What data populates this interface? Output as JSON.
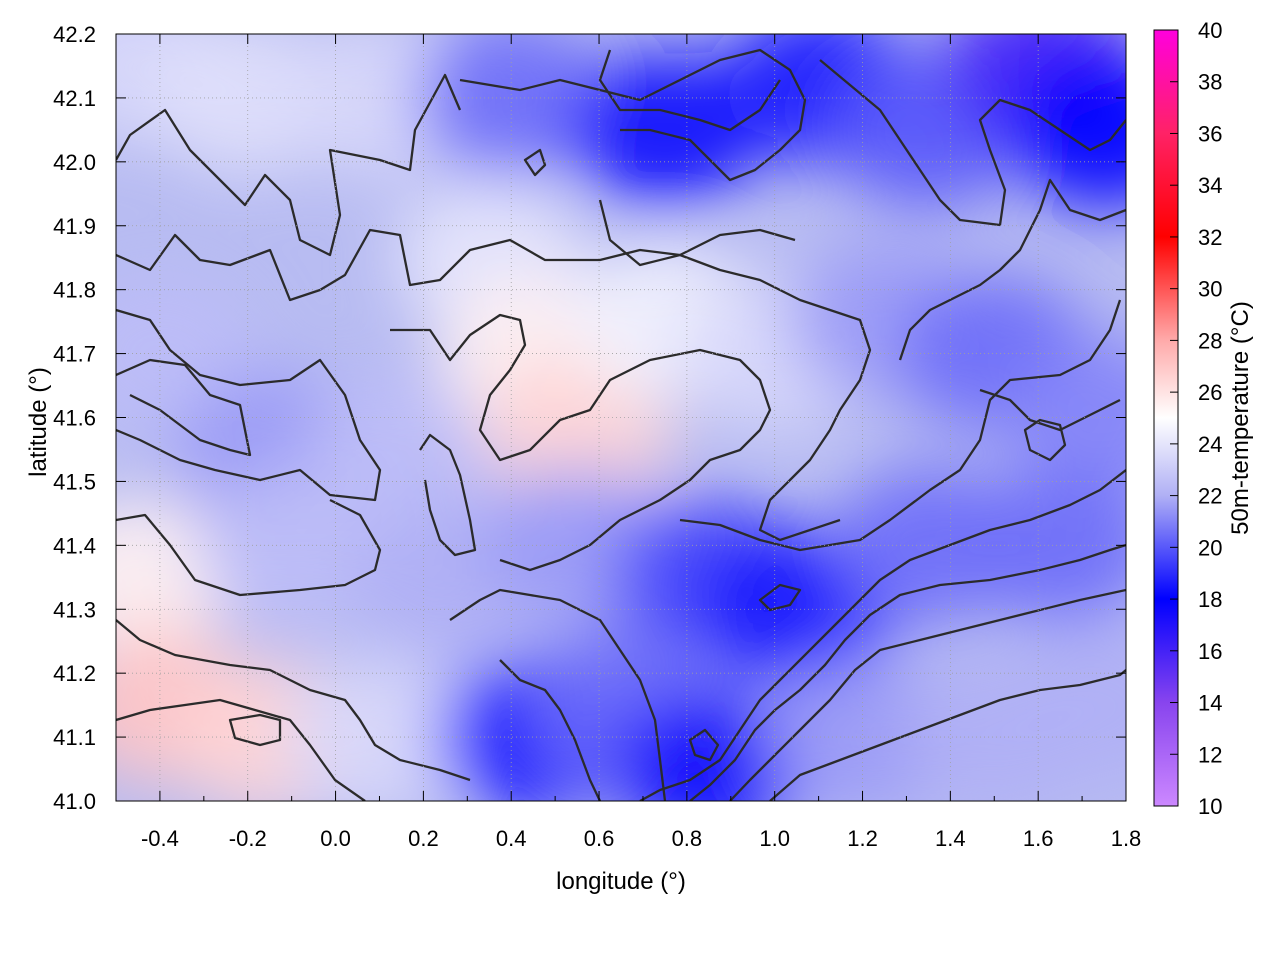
{
  "chart_data": {
    "type": "heatmap",
    "title": "",
    "xlabel": "longitude (°)",
    "ylabel": "latitude (°)",
    "colorbar_label": "50m-temperature (°C)",
    "xlim": [
      -0.5,
      1.8
    ],
    "ylim": [
      41.0,
      42.2
    ],
    "clim": [
      10,
      40
    ],
    "x_ticks": [
      "-0.4",
      "-0.2",
      "0.0",
      "0.2",
      "0.4",
      "0.6",
      "0.8",
      "1.0",
      "1.2",
      "1.4",
      "1.6",
      "1.8"
    ],
    "y_ticks": [
      "41.0",
      "41.1",
      "41.2",
      "41.3",
      "41.4",
      "41.5",
      "41.6",
      "41.7",
      "41.8",
      "41.9",
      "42.0",
      "42.1",
      "42.2"
    ],
    "colorbar_ticks": [
      "10",
      "12",
      "14",
      "16",
      "18",
      "20",
      "22",
      "24",
      "26",
      "28",
      "30",
      "32",
      "34",
      "36",
      "38",
      "40"
    ],
    "grid": true,
    "colormap": [
      {
        "value": 10,
        "color": "#cc88ff"
      },
      {
        "value": 14,
        "color": "#8844ee"
      },
      {
        "value": 18,
        "color": "#0000ff"
      },
      {
        "value": 22,
        "color": "#b0b0f5"
      },
      {
        "value": 25,
        "color": "#ffffff"
      },
      {
        "value": 28,
        "color": "#ffaaaa"
      },
      {
        "value": 32,
        "color": "#ff0000"
      },
      {
        "value": 36,
        "color": "#ff2266"
      },
      {
        "value": 40,
        "color": "#ff00dd"
      }
    ],
    "field_samples": [
      {
        "x": -0.45,
        "y": 42.15,
        "t": 23.5
      },
      {
        "x": -0.2,
        "y": 42.1,
        "t": 23.8
      },
      {
        "x": 0.1,
        "y": 42.1,
        "t": 23.5
      },
      {
        "x": 0.4,
        "y": 42.1,
        "t": 20.5
      },
      {
        "x": 0.75,
        "y": 42.05,
        "t": 17.5
      },
      {
        "x": 1.1,
        "y": 42.12,
        "t": 18.5
      },
      {
        "x": 1.35,
        "y": 42.05,
        "t": 20.0
      },
      {
        "x": 1.6,
        "y": 42.15,
        "t": 16.0
      },
      {
        "x": 1.75,
        "y": 42.05,
        "t": 18.0
      },
      {
        "x": -0.4,
        "y": 41.7,
        "t": 22.5
      },
      {
        "x": -0.15,
        "y": 41.55,
        "t": 21.5
      },
      {
        "x": 0.15,
        "y": 41.55,
        "t": 22.5
      },
      {
        "x": 0.35,
        "y": 41.85,
        "t": 24.0
      },
      {
        "x": 0.45,
        "y": 41.7,
        "t": 25.5
      },
      {
        "x": 0.55,
        "y": 41.58,
        "t": 26.5
      },
      {
        "x": 0.75,
        "y": 41.75,
        "t": 24.5
      },
      {
        "x": 1.0,
        "y": 41.7,
        "t": 23.5
      },
      {
        "x": 1.25,
        "y": 41.75,
        "t": 21.5
      },
      {
        "x": 1.5,
        "y": 41.7,
        "t": 20.5
      },
      {
        "x": 1.75,
        "y": 41.6,
        "t": 21.0
      },
      {
        "x": -0.45,
        "y": 41.35,
        "t": 25.5
      },
      {
        "x": -0.1,
        "y": 41.4,
        "t": 22.5
      },
      {
        "x": 0.25,
        "y": 41.35,
        "t": 22.0
      },
      {
        "x": 0.55,
        "y": 41.4,
        "t": 21.5
      },
      {
        "x": 0.85,
        "y": 41.35,
        "t": 19.5
      },
      {
        "x": 1.05,
        "y": 41.3,
        "t": 18.5
      },
      {
        "x": 1.35,
        "y": 41.4,
        "t": 20.5
      },
      {
        "x": 1.65,
        "y": 41.4,
        "t": 20.5
      },
      {
        "x": -0.4,
        "y": 41.15,
        "t": 27.0
      },
      {
        "x": -0.15,
        "y": 41.1,
        "t": 26.5
      },
      {
        "x": 0.1,
        "y": 41.1,
        "t": 23.5
      },
      {
        "x": 0.45,
        "y": 41.1,
        "t": 18.0
      },
      {
        "x": 0.65,
        "y": 41.15,
        "t": 20.5
      },
      {
        "x": 0.85,
        "y": 41.05,
        "t": 17.5
      },
      {
        "x": 1.2,
        "y": 41.1,
        "t": 21.5
      },
      {
        "x": 1.5,
        "y": 41.1,
        "t": 22.0
      },
      {
        "x": 1.75,
        "y": 41.15,
        "t": 22.0
      }
    ]
  }
}
